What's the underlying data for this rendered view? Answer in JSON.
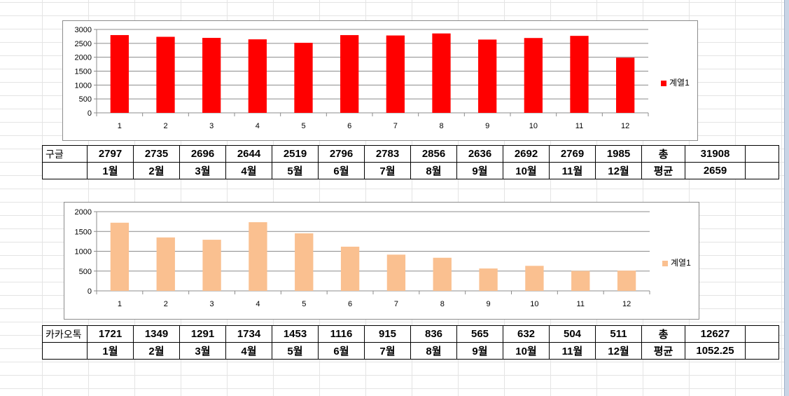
{
  "colors": {
    "google_bar": "#ff0000",
    "kakao_bar": "#fac090",
    "grid": "#8c8c8c"
  },
  "chart_data": [
    {
      "type": "bar",
      "categories": [
        "1",
        "2",
        "3",
        "4",
        "5",
        "6",
        "7",
        "8",
        "9",
        "10",
        "11",
        "12"
      ],
      "series": [
        {
          "name": "계열1",
          "values": [
            2797,
            2735,
            2696,
            2644,
            2519,
            2796,
            2783,
            2856,
            2636,
            2692,
            2769,
            1985
          ]
        }
      ],
      "yticks": [
        "0",
        "500",
        "1000",
        "1500",
        "2000",
        "2500",
        "3000"
      ],
      "ylim": [
        0,
        3000
      ],
      "legend": "right",
      "grid": true
    },
    {
      "type": "bar",
      "categories": [
        "1",
        "2",
        "3",
        "4",
        "5",
        "6",
        "7",
        "8",
        "9",
        "10",
        "11",
        "12"
      ],
      "series": [
        {
          "name": "계열1",
          "values": [
            1721,
            1349,
            1291,
            1734,
            1453,
            1116,
            915,
            836,
            565,
            632,
            504,
            511
          ]
        }
      ],
      "yticks": [
        "0",
        "500",
        "1000",
        "1500",
        "2000"
      ],
      "ylim": [
        0,
        2000
      ],
      "legend": "right",
      "grid": true
    }
  ],
  "google_table": {
    "label": "구글",
    "values": [
      "2797",
      "2735",
      "2696",
      "2644",
      "2519",
      "2796",
      "2783",
      "2856",
      "2636",
      "2692",
      "2769",
      "1985"
    ],
    "months": [
      "1월",
      "2월",
      "3월",
      "4월",
      "5월",
      "6월",
      "7월",
      "8월",
      "9월",
      "10월",
      "11월",
      "12월"
    ],
    "total_label": "총",
    "total_value": "31908",
    "avg_label": "평균",
    "avg_value": "2659"
  },
  "kakao_table": {
    "label": "카카오톡",
    "values": [
      "1721",
      "1349",
      "1291",
      "1734",
      "1453",
      "1116",
      "915",
      "836",
      "565",
      "632",
      "504",
      "511"
    ],
    "months": [
      "1월",
      "2월",
      "3월",
      "4월",
      "5월",
      "6월",
      "7월",
      "8월",
      "9월",
      "10월",
      "11월",
      "12월"
    ],
    "total_label": "총",
    "total_value": "12627",
    "avg_label": "평균",
    "avg_value": "1052.25"
  }
}
